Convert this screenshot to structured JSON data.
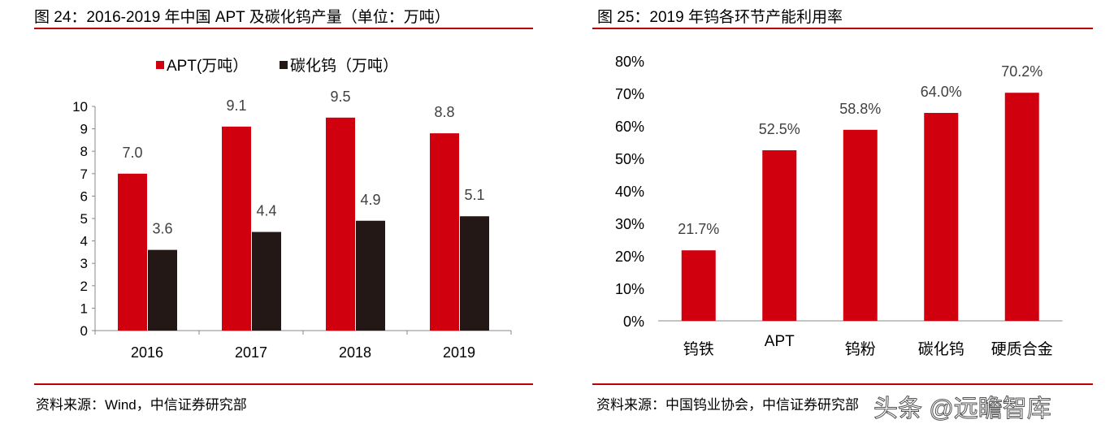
{
  "chart_data": [
    {
      "type": "bar",
      "title": "图 24：2016-2019 年中国 APT 及碳化钨产量（单位：万吨）",
      "categories": [
        "2016",
        "2017",
        "2018",
        "2019"
      ],
      "series": [
        {
          "name": "APT(万吨）",
          "values": [
            7.0,
            9.1,
            9.5,
            8.8
          ],
          "color": "#d0000f"
        },
        {
          "name": "碳化钨（万吨）",
          "values": [
            3.6,
            4.4,
            4.9,
            5.1
          ],
          "color": "#231815"
        }
      ],
      "data_labels": [
        [
          "7.0",
          "9.1",
          "9.5",
          "8.8"
        ],
        [
          "3.6",
          "4.4",
          "4.9",
          "5.1"
        ]
      ],
      "ylim": [
        0,
        10
      ],
      "yticks": [
        "0",
        "1",
        "2",
        "3",
        "4",
        "5",
        "6",
        "7",
        "8",
        "9",
        "10"
      ],
      "legend": "top",
      "grid": false,
      "source": "资料来源：Wind，中信证券研究部"
    },
    {
      "type": "bar",
      "title": "图 25：2019 年钨各环节产能利用率",
      "categories": [
        "钨铁",
        "APT",
        "钨粉",
        "碳化钨",
        "硬质合金"
      ],
      "values": [
        21.7,
        52.5,
        58.8,
        64.0,
        70.2
      ],
      "data_labels": [
        "21.7%",
        "52.5%",
        "58.8%",
        "64.0%",
        "70.2%"
      ],
      "color": "#d0000f",
      "ylim": [
        0,
        80
      ],
      "yticks": [
        "0%",
        "10%",
        "20%",
        "30%",
        "40%",
        "50%",
        "60%",
        "70%",
        "80%"
      ],
      "grid": false,
      "source": "资料来源：中国钨业协会，中信证券研究部"
    }
  ],
  "watermark": "头条 @远瞻智库"
}
